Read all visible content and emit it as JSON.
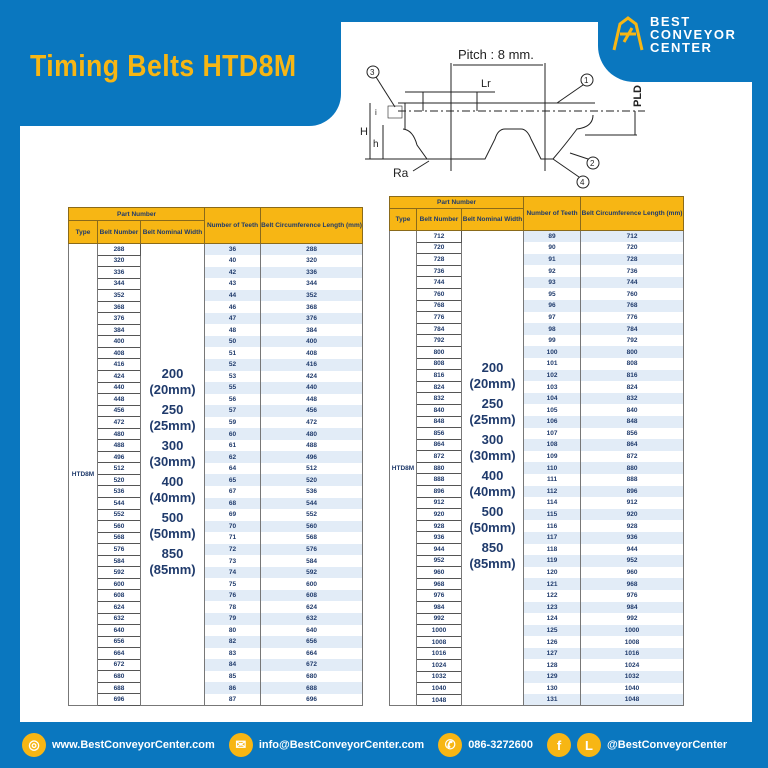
{
  "title": "Timing Belts HTD8M",
  "logo": {
    "line1": "BEST",
    "line2": "CONVEYOR",
    "line3": "CENTER"
  },
  "diagram": {
    "pitch": "Pitch : 8 mm.",
    "lr": "Lr",
    "pld": "PLD",
    "H": "H",
    "h": "h",
    "i": "i",
    "ra": "Ra",
    "c1": "1",
    "c2": "2",
    "c3": "3",
    "c4": "4"
  },
  "table_headers": {
    "part_number": "Part Number",
    "type": "Type",
    "belt_number": "Belt Number",
    "nominal_width": "Belt Nominal Width",
    "teeth": "Number of Teeth",
    "length": "Belt Circumference Length (mm)"
  },
  "type": "HTD8M",
  "widths": [
    {
      "value": "200",
      "mm": "(20mm)"
    },
    {
      "value": "250",
      "mm": "(25mm)"
    },
    {
      "value": "300",
      "mm": "(30mm)"
    },
    {
      "value": "400",
      "mm": "(40mm)"
    },
    {
      "value": "500",
      "mm": "(50mm)"
    },
    {
      "value": "850",
      "mm": "(85mm)"
    }
  ],
  "tables": [
    {
      "belt_numbers": [
        "288",
        "320",
        "336",
        "344",
        "352",
        "368",
        "376",
        "384",
        "400",
        "408",
        "416",
        "424",
        "440",
        "448",
        "456",
        "472",
        "480",
        "488",
        "496",
        "512",
        "520",
        "536",
        "544",
        "552",
        "560",
        "568",
        "576",
        "584",
        "592",
        "600",
        "608",
        "624",
        "632",
        "640",
        "656",
        "664",
        "672",
        "680",
        "688",
        "696"
      ],
      "teeth": [
        "36",
        "40",
        "42",
        "43",
        "44",
        "46",
        "47",
        "48",
        "50",
        "51",
        "52",
        "53",
        "55",
        "56",
        "57",
        "59",
        "60",
        "61",
        "62",
        "64",
        "65",
        "67",
        "68",
        "69",
        "70",
        "71",
        "72",
        "73",
        "74",
        "75",
        "76",
        "78",
        "79",
        "80",
        "82",
        "83",
        "84",
        "85",
        "86",
        "87"
      ],
      "lengths": [
        "288",
        "320",
        "336",
        "344",
        "352",
        "368",
        "376",
        "384",
        "400",
        "408",
        "416",
        "424",
        "440",
        "448",
        "456",
        "472",
        "480",
        "488",
        "496",
        "512",
        "520",
        "536",
        "544",
        "552",
        "560",
        "568",
        "576",
        "584",
        "592",
        "600",
        "608",
        "624",
        "632",
        "640",
        "656",
        "664",
        "672",
        "680",
        "688",
        "696"
      ]
    },
    {
      "belt_numbers": [
        "712",
        "720",
        "728",
        "736",
        "744",
        "760",
        "768",
        "776",
        "784",
        "792",
        "800",
        "808",
        "816",
        "824",
        "832",
        "840",
        "848",
        "856",
        "864",
        "872",
        "880",
        "888",
        "896",
        "912",
        "920",
        "928",
        "936",
        "944",
        "952",
        "960",
        "968",
        "976",
        "984",
        "992",
        "1000",
        "1008",
        "1016",
        "1024",
        "1032",
        "1040",
        "1048"
      ],
      "teeth": [
        "89",
        "90",
        "91",
        "92",
        "93",
        "95",
        "96",
        "97",
        "98",
        "99",
        "100",
        "101",
        "102",
        "103",
        "104",
        "105",
        "106",
        "107",
        "108",
        "109",
        "110",
        "111",
        "112",
        "114",
        "115",
        "116",
        "117",
        "118",
        "119",
        "120",
        "121",
        "122",
        "123",
        "124",
        "125",
        "126",
        "127",
        "128",
        "129",
        "130",
        "131"
      ],
      "lengths": [
        "712",
        "720",
        "728",
        "736",
        "744",
        "760",
        "768",
        "776",
        "784",
        "792",
        "800",
        "808",
        "816",
        "824",
        "832",
        "840",
        "848",
        "856",
        "864",
        "872",
        "880",
        "888",
        "896",
        "912",
        "920",
        "928",
        "936",
        "944",
        "952",
        "960",
        "968",
        "976",
        "984",
        "992",
        "1000",
        "1008",
        "1016",
        "1024",
        "1032",
        "1040",
        "1048"
      ]
    }
  ],
  "footer": {
    "website": "www.BestConveyorCenter.com",
    "email": "info@BestConveyorCenter.com",
    "phone": "086-3272600",
    "social": "@BestConveyorCenter",
    "line_letter": "L",
    "fb_letter": "f"
  },
  "colors": {
    "blue": "#0a77bf",
    "orange": "#f7b614",
    "navy": "#1f3a6b",
    "row_alt": "#e2ecf7"
  }
}
